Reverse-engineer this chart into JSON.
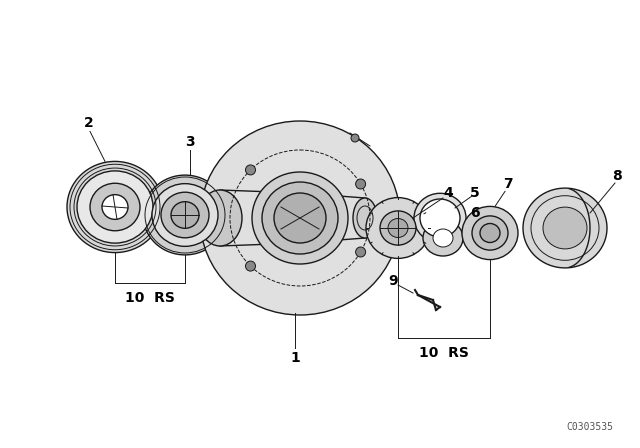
{
  "bg_color": "#ffffff",
  "line_color": "#1a1a1a",
  "label_color": "#000000",
  "watermark": "C0303535",
  "watermark_fontsize": 7,
  "label_fontsize": 10
}
